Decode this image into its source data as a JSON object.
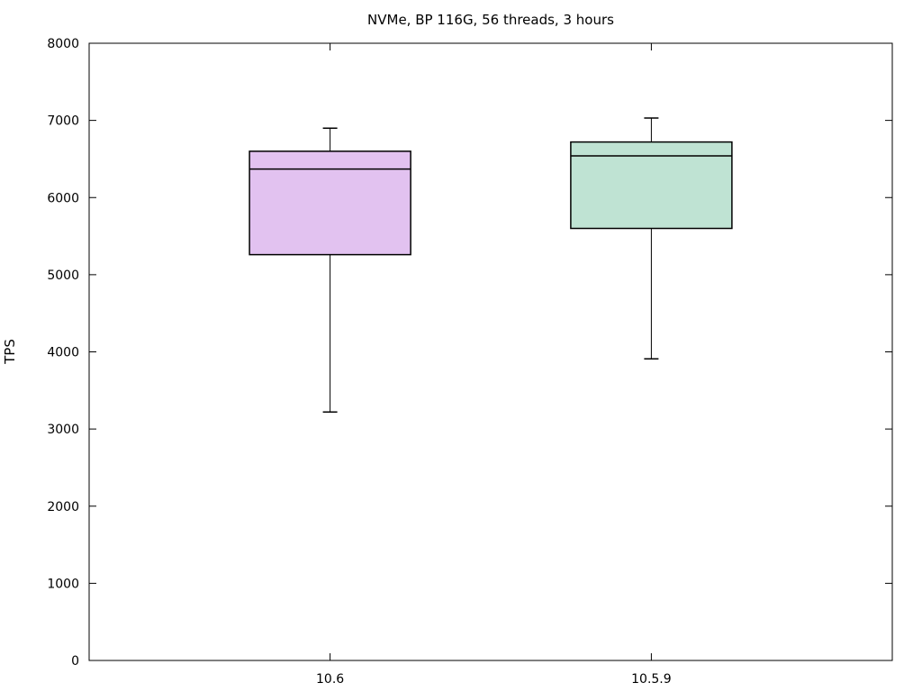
{
  "chart": {
    "title": "NVMe, BP 116G, 56 threads, 3 hours",
    "ylabel": "TPS"
  },
  "chart_data": {
    "type": "boxplot",
    "title": "NVMe, BP 116G, 56 threads, 3 hours",
    "xlabel": "",
    "ylabel": "TPS",
    "ylim": [
      0,
      8000
    ],
    "ytick_step": 1000,
    "ytick_labels": [
      "0",
      "1000",
      "2000",
      "3000",
      "4000",
      "5000",
      "6000",
      "7000",
      "8000"
    ],
    "categories": [
      "10.6",
      "10.5.9"
    ],
    "series": [
      {
        "name": "10.6",
        "color": "#e2c2f0",
        "whisker_low": 3220,
        "q1": 5260,
        "median": 6370,
        "q3": 6600,
        "whisker_high": 6900
      },
      {
        "name": "10.5.9",
        "color": "#bfe3d3",
        "whisker_low": 3910,
        "q1": 5600,
        "median": 6540,
        "q3": 6720,
        "whisker_high": 7030
      }
    ],
    "legend": "none",
    "grid": false,
    "border": true,
    "tick_mirror": true,
    "line_color": "#000000",
    "background": "#ffffff"
  }
}
